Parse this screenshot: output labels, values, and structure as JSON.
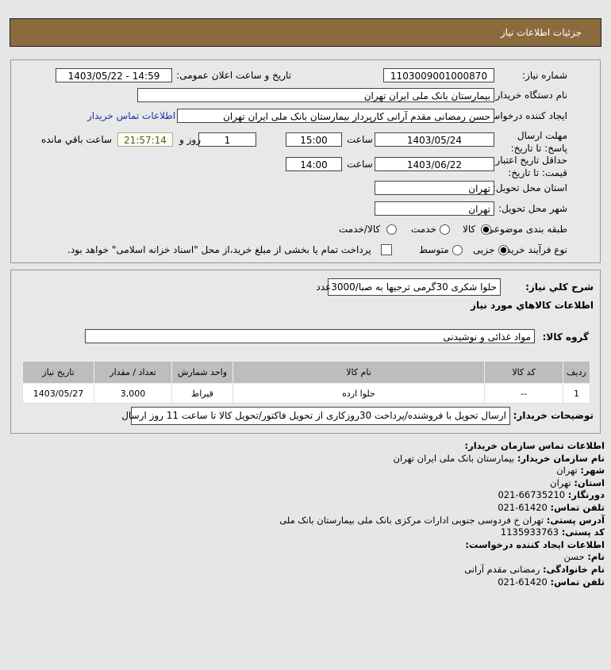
{
  "header": {
    "title": "جزئیات اطلاعات نیاز"
  },
  "form": {
    "need_number_label": "شماره نیاز:",
    "need_number": "1103009001000870",
    "announce_label": "تاریخ و ساعت اعلان عمومی:",
    "announce_value": "1403/05/22 - 14:59",
    "buyer_label": "نام دستگاه خریدار:",
    "buyer_value": "بیمارستان بانک ملی ایران تهران",
    "requester_label": "ایجاد کننده درخواست:",
    "requester_value": "حسن رمضانی مقدم آرانی کارپرداز بیمارستان بانک ملی ایران تهران",
    "contact_link": "اطلاعات تماس خریدار",
    "deadline_label": "مهلت ارسال پاسخ: تا تاریخ:",
    "deadline_date": "1403/05/24",
    "time_label": "ساعت",
    "deadline_time": "15:00",
    "days": "1",
    "days_label": "روز و",
    "remaining": "21:57:14",
    "remaining_label": "ساعت باقي مانده",
    "validity_label": "حداقل تاریخ اعتبار قیمت: تا تاریخ:",
    "validity_date": "1403/06/22",
    "validity_time": "14:00",
    "province_label": "استان محل تحویل:",
    "province": "تهران",
    "city_label": "شهر محل تحویل:",
    "city": "تهران",
    "category_label": "طبقه بندی موضوعی:",
    "category_options": [
      "کالا",
      "خدمت",
      "کالا/خدمت"
    ],
    "category_selected": "کالا",
    "process_label": "نوع فرآیند خرید :",
    "process_options": [
      "جزیی",
      "متوسط"
    ],
    "process_selected": "جزیی",
    "payment_note": "پرداخت تمام یا بخشی از مبلغ خرید،از محل \"اسناد خزانه اسلامی\" خواهد بود."
  },
  "details": {
    "summary_label": "شرح كلي نياز:",
    "summary": "حلوا شکری 30گرمی ترجیها به صبا/3000عدد",
    "goods_title": "اطلاعات كالاهاي مورد نياز",
    "group_label": "گروه کالا:",
    "group": "مواد غذائی و نوشیدنی",
    "table": {
      "headers": [
        "ردیف",
        "کد کالا",
        "نام کالا",
        "واحد شمارش",
        "تعداد / مقدار",
        "تاریخ نیاز"
      ],
      "rows": [
        [
          "1",
          "--",
          "حلوا ارده",
          "قیراط",
          "3,000",
          "1403/05/27"
        ]
      ]
    },
    "notes_label": "توضیحات خریدار:",
    "notes": "ارسال تحویل با فروشنده/پرداخت 30روزکاری از تحویل فاکتور/تحویل کالا تا ساعت 11 روز ارسال"
  },
  "contact": {
    "title": "اطلاعات تماس سازمان خریدار:",
    "lines": [
      {
        "k": "نام سازمان خریدار:",
        "v": "بیمارستان بانک ملی ایران تهران"
      },
      {
        "k": "شهر:",
        "v": "تهران"
      },
      {
        "k": "استان:",
        "v": "تهران"
      },
      {
        "k": "دورنگار:",
        "v": "021-66735210"
      },
      {
        "k": "تلفن تماس:",
        "v": "021-61420"
      },
      {
        "k": "آدرس پستی:",
        "v": "تهران خ فردوسی جنوبی ادارات مرکزی بانک ملی بیمارستان بانک ملی"
      },
      {
        "k": "کد پستی:",
        "v": "1135933763"
      }
    ],
    "creator_title": "اطلاعات ایجاد کننده درخواست:",
    "creator": [
      {
        "k": "نام:",
        "v": "حسن"
      },
      {
        "k": "نام خانوادگی:",
        "v": "رمضانی مقدم آرانی"
      },
      {
        "k": "تلفن تماس:",
        "v": "021-61420"
      }
    ]
  },
  "colors": {
    "header": "#8b6b3e",
    "link": "#1a37a6"
  }
}
